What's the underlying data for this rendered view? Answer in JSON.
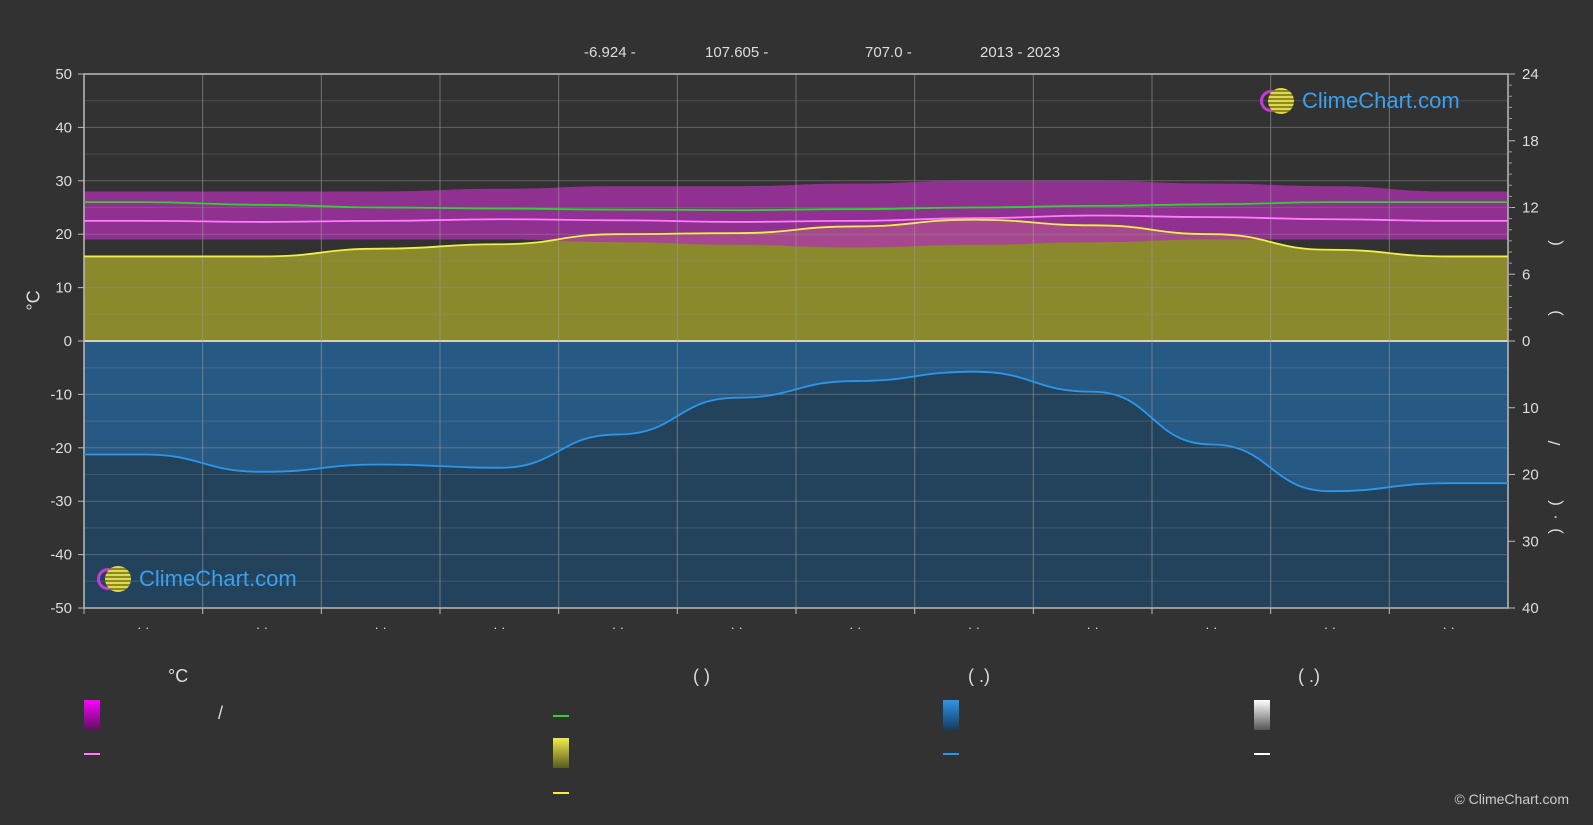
{
  "header": {
    "lat": "-6.924 -",
    "lon": "107.605 -",
    "elev": "707.0 -",
    "years": "2013 - 2023"
  },
  "axes": {
    "left_unit": "°C",
    "left_ticks": [
      50,
      40,
      30,
      20,
      10,
      0,
      -10,
      -20,
      -30,
      -40,
      -50
    ],
    "right_top_ticks": [
      24,
      18,
      12,
      6,
      0
    ],
    "right_bottom_ticks": [
      10,
      20,
      30,
      40
    ],
    "x_tick_labels": [
      "· ·",
      "· ·",
      "· ·",
      "· ·",
      "· ·",
      "· ·",
      "· ·",
      "· ·",
      "· ·",
      "· ·",
      "· ·",
      "· ·"
    ],
    "right_side_glyphs": [
      "(",
      ")",
      "/",
      "(",
      "·",
      ")"
    ]
  },
  "chart_data": {
    "type": "line",
    "x_months": [
      "1",
      "2",
      "3",
      "4",
      "5",
      "6",
      "7",
      "8",
      "9",
      "10",
      "11",
      "12"
    ],
    "ylim": [
      -50,
      50
    ],
    "series": [
      {
        "color": "#2bd62b",
        "axis": "temp",
        "values": [
          26.0,
          25.5,
          25.0,
          24.8,
          24.6,
          24.5,
          24.7,
          25.0,
          25.3,
          25.6,
          26.0,
          26.0
        ]
      },
      {
        "color": "#ff7cff",
        "axis": "temp",
        "values": [
          22.5,
          22.3,
          22.5,
          22.8,
          22.6,
          22.3,
          22.5,
          23.0,
          23.5,
          23.2,
          22.8,
          22.5
        ]
      },
      {
        "color": "#f0ee4a",
        "axis": "sun_hours",
        "values": [
          7.6,
          7.6,
          8.3,
          8.7,
          9.6,
          9.7,
          10.3,
          10.9,
          10.4,
          9.6,
          8.2,
          7.6
        ]
      },
      {
        "color": "#2d96ea",
        "axis": "precip_mm",
        "values": [
          17.0,
          19.6,
          18.5,
          19.0,
          14.0,
          8.5,
          6.0,
          4.6,
          7.6,
          15.5,
          22.5,
          21.3
        ]
      }
    ],
    "temp_band": {
      "max_values": [
        28,
        28,
        28,
        28.5,
        29,
        29,
        29.5,
        30,
        30,
        29.5,
        29,
        28
      ],
      "min_values": [
        19,
        19,
        19,
        19,
        18.5,
        18,
        17.5,
        18,
        18.5,
        19,
        19,
        19
      ]
    },
    "sun_right_axis_range": [
      0,
      24
    ],
    "precip_right_axis_range": [
      0,
      40
    ]
  },
  "legend": {
    "col1_title": "°C",
    "col1_slash": "/",
    "col2_title": "(           )",
    "col3_title": "(   .)",
    "col4_title": "(   .)"
  },
  "logos": {
    "top": "ClimeChart.com",
    "bottom": "ClimeChart.com"
  },
  "copyright": "© ClimeChart.com",
  "colors": {
    "bg": "#323232",
    "magenta": "#ff00ff",
    "yellow": "#f0ee4a",
    "blue": "#2d96ea",
    "green": "#2bd62b"
  }
}
